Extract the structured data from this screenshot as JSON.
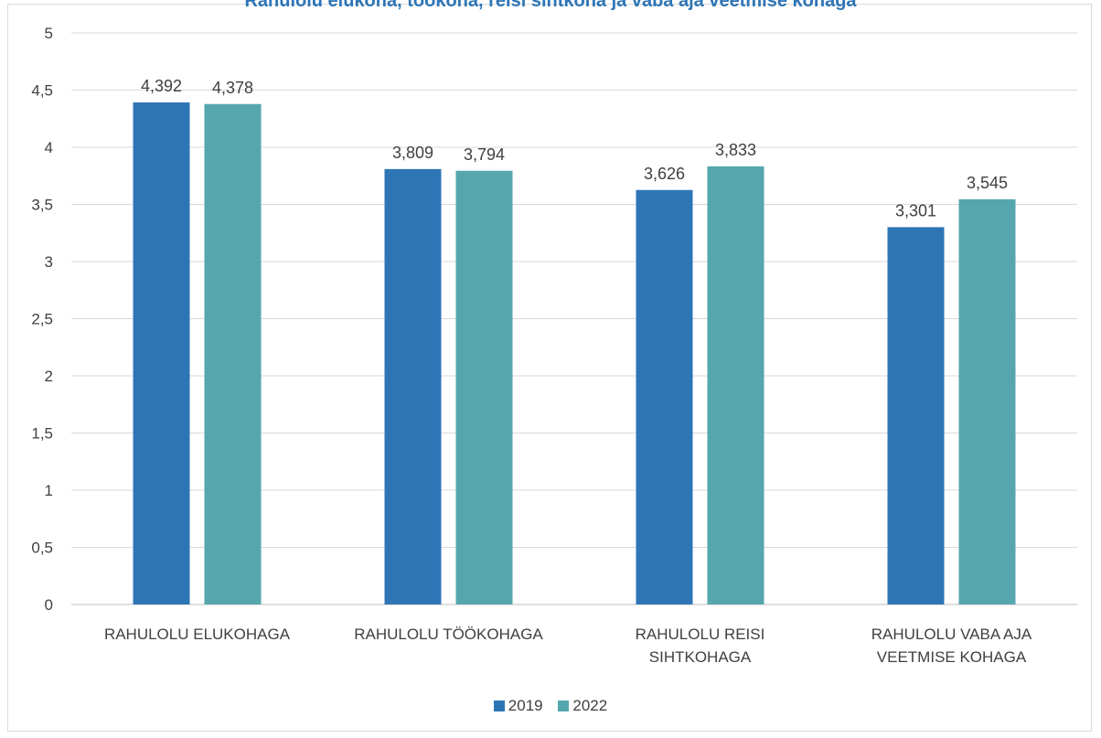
{
  "chart_data": {
    "type": "bar",
    "title": "Rahulolu elukoha, töökoha, reisi sihtkoha ja vaba aja veetmise kohaga",
    "categories": [
      [
        "RAHULOLU ELUKOHAGA"
      ],
      [
        "RAHULOLU TÖÖKOHAGA"
      ],
      [
        "RAHULOLU REISI",
        "SIHTKOHAGA"
      ],
      [
        "RAHULOLU VABA AJA",
        "VEETMISE KOHAGA"
      ]
    ],
    "series": [
      {
        "name": "2019",
        "color": "#2e75b6",
        "values": [
          4.392,
          3.809,
          3.626,
          3.301
        ],
        "labels": [
          "4,392",
          "3,809",
          "3,626",
          "3,301"
        ]
      },
      {
        "name": "2022",
        "color": "#56a6ae",
        "values": [
          4.378,
          3.794,
          3.833,
          3.545
        ],
        "labels": [
          "4,378",
          "3,794",
          "3,833",
          "3,545"
        ]
      }
    ],
    "ylim": [
      0,
      5
    ],
    "yticks": [
      "0",
      "0,5",
      "1",
      "1,5",
      "2",
      "2,5",
      "3",
      "3,5",
      "4",
      "4,5",
      "5"
    ],
    "grid": true,
    "legend": "bottom"
  }
}
